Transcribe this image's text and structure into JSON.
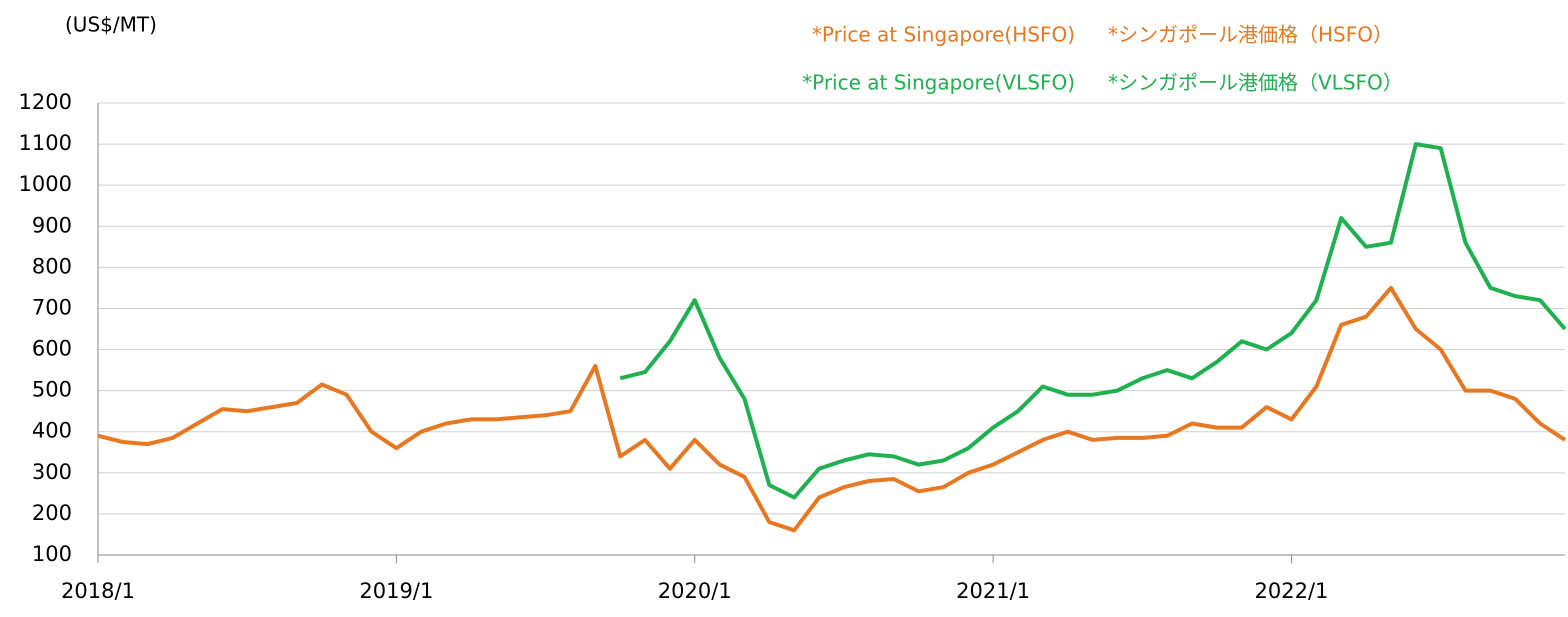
{
  "chart_data": {
    "type": "line",
    "y_label": "(US$/MT)",
    "x": [
      "2018/1",
      "2018/2",
      "2018/3",
      "2018/4",
      "2018/5",
      "2018/6",
      "2018/7",
      "2018/8",
      "2018/9",
      "2018/10",
      "2018/11",
      "2018/12",
      "2019/1",
      "2019/2",
      "2019/3",
      "2019/4",
      "2019/5",
      "2019/6",
      "2019/7",
      "2019/8",
      "2019/9",
      "2019/10",
      "2019/11",
      "2019/12",
      "2020/1",
      "2020/2",
      "2020/3",
      "2020/4",
      "2020/5",
      "2020/6",
      "2020/7",
      "2020/8",
      "2020/9",
      "2020/10",
      "2020/11",
      "2020/12",
      "2021/1",
      "2021/2",
      "2021/3",
      "2021/4",
      "2021/5",
      "2021/6",
      "2021/7",
      "2021/8",
      "2021/9",
      "2021/10",
      "2021/11",
      "2021/12",
      "2022/1",
      "2022/2",
      "2022/3",
      "2022/4",
      "2022/5",
      "2022/6",
      "2022/7",
      "2022/8",
      "2022/9",
      "2022/10",
      "2022/11",
      "2022/12"
    ],
    "series": [
      {
        "name": "*Price at Singapore(HSFO)",
        "name_ja": "*シンガポール港価格（HSFO）",
        "color": "#e87722",
        "values": [
          390,
          375,
          370,
          385,
          420,
          455,
          450,
          460,
          470,
          515,
          490,
          400,
          360,
          400,
          420,
          430,
          430,
          435,
          440,
          450,
          560,
          340,
          380,
          310,
          380,
          320,
          290,
          180,
          160,
          240,
          265,
          280,
          285,
          255,
          265,
          300,
          320,
          350,
          380,
          400,
          380,
          385,
          385,
          390,
          420,
          410,
          410,
          460,
          430,
          510,
          660,
          680,
          750,
          650,
          600,
          500,
          500,
          480,
          420,
          380
        ]
      },
      {
        "name": "*Price at Singapore(VLSFO)",
        "name_ja": "*シンガポール港価格（VLSFO）",
        "color": "#1fb04f",
        "values": [
          null,
          null,
          null,
          null,
          null,
          null,
          null,
          null,
          null,
          null,
          null,
          null,
          null,
          null,
          null,
          null,
          null,
          null,
          null,
          null,
          null,
          530,
          545,
          620,
          720,
          580,
          480,
          270,
          240,
          310,
          330,
          345,
          340,
          320,
          330,
          360,
          410,
          450,
          510,
          490,
          490,
          500,
          530,
          550,
          530,
          570,
          620,
          600,
          640,
          720,
          920,
          850,
          860,
          1100,
          1090,
          860,
          750,
          730,
          720,
          650
        ]
      }
    ],
    "xlim": [
      "2018/1",
      "2022/12"
    ],
    "xticks": [
      "2018/1",
      "2019/1",
      "2020/1",
      "2021/1",
      "2022/1"
    ],
    "ylim": [
      100,
      1200
    ],
    "yticks": [
      100,
      200,
      300,
      400,
      500,
      600,
      700,
      800,
      900,
      1000,
      1100,
      1200
    ],
    "grid": true,
    "legend": "top-right"
  }
}
